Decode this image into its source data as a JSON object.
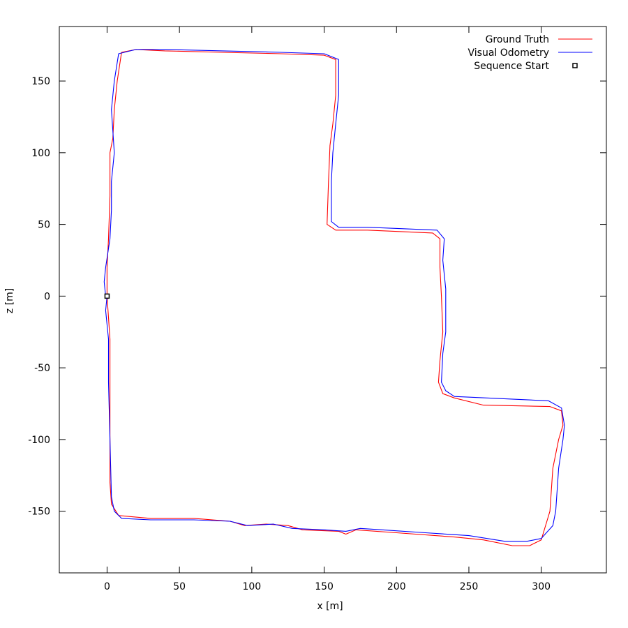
{
  "chart_data": {
    "type": "line",
    "title": "",
    "xlabel": "x [m]",
    "ylabel": "z [m]",
    "xlim": [
      -33,
      345
    ],
    "ylim": [
      -193,
      188
    ],
    "xticks": [
      "0",
      "50",
      "100",
      "150",
      "200",
      "250",
      "300"
    ],
    "xtick_values": [
      0,
      50,
      100,
      150,
      200,
      250,
      300
    ],
    "yticks": [
      "150",
      "100",
      "50",
      "0",
      "-50",
      "-100",
      "-150"
    ],
    "ytick_values": [
      150,
      100,
      50,
      0,
      -50,
      -100,
      -150
    ],
    "grid": false,
    "legend_position": "top-right",
    "series": [
      {
        "name": "Ground Truth",
        "color": "#ff0000",
        "points": [
          [
            0,
            0
          ],
          [
            1,
            -15
          ],
          [
            2,
            -30
          ],
          [
            2,
            -60
          ],
          [
            2,
            -100
          ],
          [
            2,
            -130
          ],
          [
            3,
            -145
          ],
          [
            8,
            -153
          ],
          [
            30,
            -155
          ],
          [
            60,
            -155
          ],
          [
            85,
            -157
          ],
          [
            95,
            -160
          ],
          [
            110,
            -159
          ],
          [
            125,
            -160
          ],
          [
            135,
            -163
          ],
          [
            160,
            -164
          ],
          [
            165,
            -166
          ],
          [
            172,
            -163
          ],
          [
            200,
            -165
          ],
          [
            240,
            -168
          ],
          [
            260,
            -170
          ],
          [
            280,
            -174
          ],
          [
            292,
            -174
          ],
          [
            300,
            -170
          ],
          [
            306,
            -150
          ],
          [
            308,
            -120
          ],
          [
            312,
            -100
          ],
          [
            315,
            -90
          ],
          [
            314,
            -80
          ],
          [
            306,
            -77
          ],
          [
            260,
            -76
          ],
          [
            240,
            -71
          ],
          [
            232,
            -68
          ],
          [
            229,
            -60
          ],
          [
            230,
            -45
          ],
          [
            232,
            -25
          ],
          [
            231,
            0
          ],
          [
            230,
            20
          ],
          [
            230,
            40
          ],
          [
            225,
            44
          ],
          [
            180,
            46
          ],
          [
            158,
            46
          ],
          [
            152,
            50
          ],
          [
            153,
            80
          ],
          [
            154,
            105
          ],
          [
            156,
            120
          ],
          [
            158,
            140
          ],
          [
            158,
            165
          ],
          [
            150,
            168
          ],
          [
            120,
            169
          ],
          [
            80,
            170
          ],
          [
            40,
            171
          ],
          [
            20,
            172
          ],
          [
            10,
            170
          ],
          [
            7,
            150
          ],
          [
            5,
            130
          ],
          [
            4,
            110
          ],
          [
            2,
            100
          ],
          [
            2,
            70
          ],
          [
            1,
            40
          ],
          [
            0,
            20
          ],
          [
            0,
            0
          ]
        ]
      },
      {
        "name": "Visual Odometry",
        "color": "#0000ff",
        "points": [
          [
            0,
            0
          ],
          [
            -1,
            -10
          ],
          [
            1,
            -30
          ],
          [
            1,
            -60
          ],
          [
            2,
            -100
          ],
          [
            3,
            -140
          ],
          [
            5,
            -150
          ],
          [
            10,
            -155
          ],
          [
            30,
            -156
          ],
          [
            60,
            -156
          ],
          [
            85,
            -157
          ],
          [
            97,
            -160
          ],
          [
            115,
            -159
          ],
          [
            128,
            -162
          ],
          [
            150,
            -163
          ],
          [
            165,
            -164
          ],
          [
            175,
            -162
          ],
          [
            190,
            -163
          ],
          [
            220,
            -165
          ],
          [
            250,
            -167
          ],
          [
            275,
            -171
          ],
          [
            290,
            -171
          ],
          [
            300,
            -169
          ],
          [
            308,
            -160
          ],
          [
            310,
            -150
          ],
          [
            312,
            -120
          ],
          [
            315,
            -100
          ],
          [
            316,
            -90
          ],
          [
            314,
            -78
          ],
          [
            305,
            -73
          ],
          [
            240,
            -70
          ],
          [
            234,
            -66
          ],
          [
            231,
            -60
          ],
          [
            232,
            -40
          ],
          [
            234,
            -25
          ],
          [
            234,
            5
          ],
          [
            232,
            25
          ],
          [
            233,
            40
          ],
          [
            228,
            46
          ],
          [
            180,
            48
          ],
          [
            160,
            48
          ],
          [
            155,
            52
          ],
          [
            155,
            80
          ],
          [
            156,
            100
          ],
          [
            158,
            120
          ],
          [
            160,
            140
          ],
          [
            160,
            165
          ],
          [
            150,
            169
          ],
          [
            120,
            170
          ],
          [
            80,
            171
          ],
          [
            40,
            172
          ],
          [
            20,
            172
          ],
          [
            8,
            169
          ],
          [
            5,
            150
          ],
          [
            3,
            130
          ],
          [
            5,
            100
          ],
          [
            3,
            80
          ],
          [
            3,
            60
          ],
          [
            2,
            40
          ],
          [
            -1,
            20
          ],
          [
            -2,
            10
          ],
          [
            -1,
            0
          ]
        ]
      }
    ],
    "markers": [
      {
        "name": "Sequence Start",
        "x": 0,
        "y": 0,
        "shape": "square"
      }
    ]
  }
}
